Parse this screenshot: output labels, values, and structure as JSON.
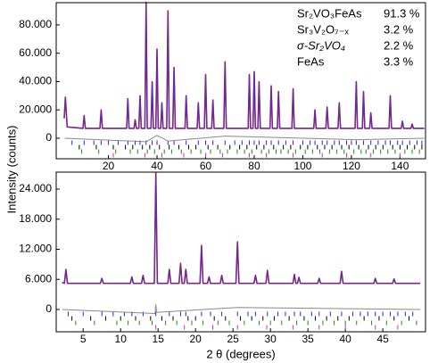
{
  "chart_data": [
    {
      "type": "line",
      "ylabel": "Intensity (counts)",
      "xlim": [
        -1.5,
        150.5
      ],
      "xticks": [
        20,
        40,
        60,
        80,
        100,
        120,
        140
      ],
      "ylim": [
        -14500,
        95700
      ],
      "yticks": [
        0,
        {
          "value": 20000,
          "label": "20.000"
        },
        {
          "value": 40000,
          "label": "40.000"
        },
        {
          "value": 60000,
          "label": "60.000"
        },
        {
          "value": 80000,
          "label": "80.000"
        }
      ],
      "x": [
        1.8,
        2.3,
        3,
        9.5,
        10,
        10.5,
        16.5,
        17,
        17.5,
        27.5,
        28,
        28.5,
        30.5,
        31,
        31.5,
        32.5,
        33,
        33.5,
        35,
        35.5,
        36,
        37.5,
        38,
        38.5,
        39.5,
        40,
        40.5,
        41.5,
        42,
        42.5,
        44,
        44.5,
        45,
        46.5,
        47,
        47.5,
        51.5,
        52,
        52.5,
        56.5,
        57,
        57.5,
        59.5,
        60,
        60.5,
        62.5,
        63,
        63.5,
        67.5,
        68,
        68.5,
        77.5,
        78,
        78.5,
        79.5,
        80,
        80.5,
        81.5,
        82,
        82.5,
        86.5,
        87,
        87.5,
        89.5,
        90,
        90.5,
        95.5,
        96,
        96.5,
        104.5,
        105,
        105.5,
        109.5,
        110,
        110.5,
        114.5,
        115,
        115.5,
        121.5,
        122,
        122.5,
        124.5,
        125,
        125.5,
        127.5,
        128,
        128.5,
        135.5,
        136,
        136.5,
        140.5,
        141,
        141.5,
        144.5,
        145,
        145.5,
        150
      ],
      "observed": {
        "color": "#d42020",
        "values": [
          14000,
          29000,
          8000,
          7000,
          16000,
          7000,
          7000,
          20000,
          7000,
          7000,
          28000,
          7000,
          7000,
          13000,
          7000,
          7000,
          30000,
          7000,
          7000,
          96000,
          7000,
          7000,
          40000,
          7000,
          7000,
          63000,
          7000,
          7000,
          25000,
          7000,
          7000,
          90000,
          7000,
          7000,
          50000,
          7000,
          7000,
          30000,
          7000,
          7000,
          25000,
          7000,
          7000,
          45000,
          7000,
          7000,
          27000,
          7000,
          7000,
          54000,
          7000,
          7000,
          45000,
          7000,
          7000,
          47000,
          7000,
          7000,
          40000,
          7000,
          7000,
          37000,
          7000,
          7000,
          33000,
          7000,
          7000,
          35000,
          7000,
          7000,
          20000,
          7000,
          7000,
          22000,
          7000,
          7000,
          25000,
          7000,
          7000,
          40000,
          7000,
          7000,
          33000,
          7000,
          7000,
          18000,
          7000,
          7000,
          30000,
          7000,
          7000,
          12000,
          7000,
          7000,
          10000,
          7000,
          7000
        ]
      },
      "calculated": {
        "color": "#3030e0",
        "values": [
          14000,
          28500,
          8000,
          7000,
          15500,
          7000,
          7000,
          19500,
          7000,
          7000,
          27500,
          7000,
          7000,
          13000,
          7000,
          7000,
          29500,
          7000,
          7000,
          95000,
          7000,
          7000,
          39500,
          7000,
          7000,
          62000,
          7000,
          7000,
          25000,
          7000,
          7000,
          89000,
          7000,
          7000,
          49500,
          7000,
          7000,
          30000,
          7000,
          7000,
          25000,
          7000,
          7000,
          44500,
          7000,
          7000,
          27000,
          7000,
          7000,
          53000,
          7000,
          7000,
          44500,
          7000,
          7000,
          46500,
          7000,
          7000,
          39500,
          7000,
          7000,
          36500,
          7000,
          7000,
          33000,
          7000,
          7000,
          34500,
          7000,
          7000,
          20000,
          7000,
          7000,
          22000,
          7000,
          7000,
          25000,
          7000,
          7000,
          39500,
          7000,
          7000,
          32500,
          7000,
          7000,
          18000,
          7000,
          7000,
          29500,
          7000,
          7000,
          12000,
          7000,
          7000,
          10000,
          7000,
          7000
        ]
      },
      "difference": {
        "color": "#888888",
        "x": [
          2,
          35.5,
          40,
          44.5,
          68,
          122,
          150
        ],
        "values": [
          0,
          -2500,
          2000,
          -2000,
          1500,
          -1000,
          0
        ]
      },
      "phases": [
        {
          "name": "Sr₂VO₃FeAs",
          "fraction": "91.3 %",
          "color": "#2323e6"
        },
        {
          "name": "Sr₃V₂O₇₋ₓ",
          "fraction": "3.2 %",
          "color": "#000000"
        },
        {
          "name": "σ-Sr₂VO₄",
          "fraction": "2.2 %",
          "color": "#1a8c1a"
        },
        {
          "name": "FeAs",
          "fraction": "3.3 %",
          "color": "#e020e0"
        }
      ],
      "reflections": [
        [
          5,
          10,
          14,
          17,
          20,
          24,
          28,
          31,
          33,
          35.5,
          38,
          40,
          44.5,
          47,
          52,
          57,
          60,
          63,
          68,
          72,
          75,
          78,
          80,
          82,
          85,
          87,
          90,
          93,
          96,
          100,
          103,
          105,
          108,
          110,
          113,
          115,
          118,
          120,
          122,
          125,
          128,
          131,
          134,
          136,
          139,
          141,
          144,
          147,
          149
        ],
        [
          8,
          15,
          22,
          27,
          30,
          34,
          37,
          41,
          45,
          49,
          53,
          56,
          61,
          65,
          70,
          74,
          77,
          81,
          84,
          88,
          92,
          95,
          99,
          102,
          106,
          109,
          112,
          116,
          119,
          123,
          127,
          130,
          133,
          137,
          140,
          143,
          146,
          149
        ],
        [
          9,
          16,
          23,
          29,
          32,
          36,
          39,
          43,
          46,
          50,
          54,
          58,
          62,
          66,
          69,
          73,
          76,
          79,
          83,
          86,
          89,
          91,
          94,
          97,
          101,
          104,
          107,
          111,
          114,
          117,
          121,
          124,
          126,
          129,
          132,
          135,
          138,
          142,
          145,
          148
        ],
        [
          22,
          35,
          42,
          51,
          60,
          67,
          78,
          85,
          96,
          108,
          118,
          128,
          140
        ]
      ]
    },
    {
      "type": "line",
      "xlabel": "2 θ (degrees)",
      "xlim": [
        1.4,
        50.7
      ],
      "xticks": [
        5,
        10,
        15,
        20,
        25,
        30,
        35,
        40,
        45
      ],
      "ylim": [
        -4450,
        27380
      ],
      "yticks": [
        0,
        {
          "value": 6000,
          "label": "6.000"
        },
        {
          "value": 12000,
          "label": "12.000"
        },
        {
          "value": 18000,
          "label": "18.000"
        },
        {
          "value": 24000,
          "label": "24.000"
        }
      ],
      "x": [
        2.2,
        2.5,
        2.7,
        2.9,
        7.3,
        7.5,
        7.7,
        11.3,
        11.5,
        11.7,
        12.8,
        13,
        13.2,
        14.5,
        14.7,
        14.9,
        16.3,
        16.5,
        16.7,
        17.8,
        18,
        18.2,
        18.5,
        18.7,
        18.9,
        20.6,
        20.8,
        21,
        21.6,
        21.8,
        22,
        23.3,
        23.5,
        23.7,
        25.4,
        25.6,
        25.8,
        27.8,
        28,
        28.2,
        29.4,
        29.6,
        29.8,
        33,
        33.2,
        33.4,
        33.6,
        33.8,
        34,
        36.3,
        36.5,
        36.7,
        39.3,
        39.5,
        39.7,
        43.8,
        44,
        44.2,
        46.3,
        46.5,
        46.7,
        50
      ],
      "observed": {
        "color": "#d42020",
        "values": [
          5400,
          5200,
          8000,
          5200,
          5200,
          6200,
          5200,
          5200,
          6500,
          5200,
          5200,
          6800,
          5200,
          5200,
          27300,
          5200,
          5200,
          8000,
          5200,
          5200,
          9200,
          5200,
          5200,
          8000,
          5200,
          5200,
          12800,
          5200,
          5200,
          6500,
          5200,
          5200,
          6800,
          5200,
          5200,
          13500,
          5200,
          5200,
          6800,
          5200,
          5200,
          7800,
          5200,
          5200,
          7000,
          5200,
          5200,
          6400,
          5200,
          5200,
          6200,
          5200,
          5200,
          7600,
          5200,
          5200,
          6200,
          5200,
          5200,
          6100,
          5200,
          5200
        ]
      },
      "calculated": {
        "color": "#3030e0",
        "values": [
          5400,
          5200,
          7800,
          5200,
          5200,
          6200,
          5200,
          5200,
          6400,
          5200,
          5200,
          6700,
          5200,
          5200,
          27000,
          5200,
          5200,
          7900,
          5200,
          5200,
          9000,
          5200,
          5200,
          7900,
          5200,
          5200,
          12600,
          5200,
          5200,
          6500,
          5200,
          5200,
          6700,
          5200,
          5200,
          13300,
          5200,
          5200,
          6700,
          5200,
          5200,
          7700,
          5200,
          5200,
          6900,
          5200,
          5200,
          6400,
          5200,
          5200,
          6200,
          5200,
          5200,
          7500,
          5200,
          5200,
          6200,
          5200,
          5200,
          6100,
          5200,
          5200
        ]
      },
      "difference": {
        "color": "#888888",
        "x": [
          2.2,
          14.6,
          14.7,
          14.8,
          25.6,
          50
        ],
        "values": [
          0,
          -800,
          1000,
          -600,
          400,
          0
        ]
      },
      "reflections": [
        [
          3,
          5,
          7.5,
          9,
          10.5,
          11.5,
          13,
          14.7,
          16.5,
          18,
          18.7,
          20.8,
          22,
          23.5,
          25.6,
          27,
          28,
          29.6,
          31,
          32,
          33.2,
          34,
          35.5,
          36.5,
          38,
          39.5,
          41,
          42,
          43,
          44,
          45,
          46,
          47,
          48,
          49
        ],
        [
          3.5,
          6,
          8,
          10,
          12,
          14,
          15.5,
          17,
          19,
          20,
          22.5,
          24,
          26,
          27.5,
          29,
          30.5,
          32.5,
          34.5,
          36,
          37.5,
          39,
          40.5,
          42.5,
          44.5,
          46.5,
          48.5
        ],
        [
          4,
          6.5,
          9.5,
          11,
          12.5,
          14.2,
          16,
          17.5,
          19.5,
          21,
          23,
          24.5,
          26.5,
          28.5,
          30,
          31.5,
          33.5,
          35,
          37,
          38.5,
          40,
          41.5,
          43.5,
          45.5,
          47.5,
          49.5
        ],
        [
          14.7,
          18.5,
          22.3,
          25.6,
          29.5,
          33,
          36.5,
          40,
          44,
          47
        ]
      ]
    }
  ]
}
